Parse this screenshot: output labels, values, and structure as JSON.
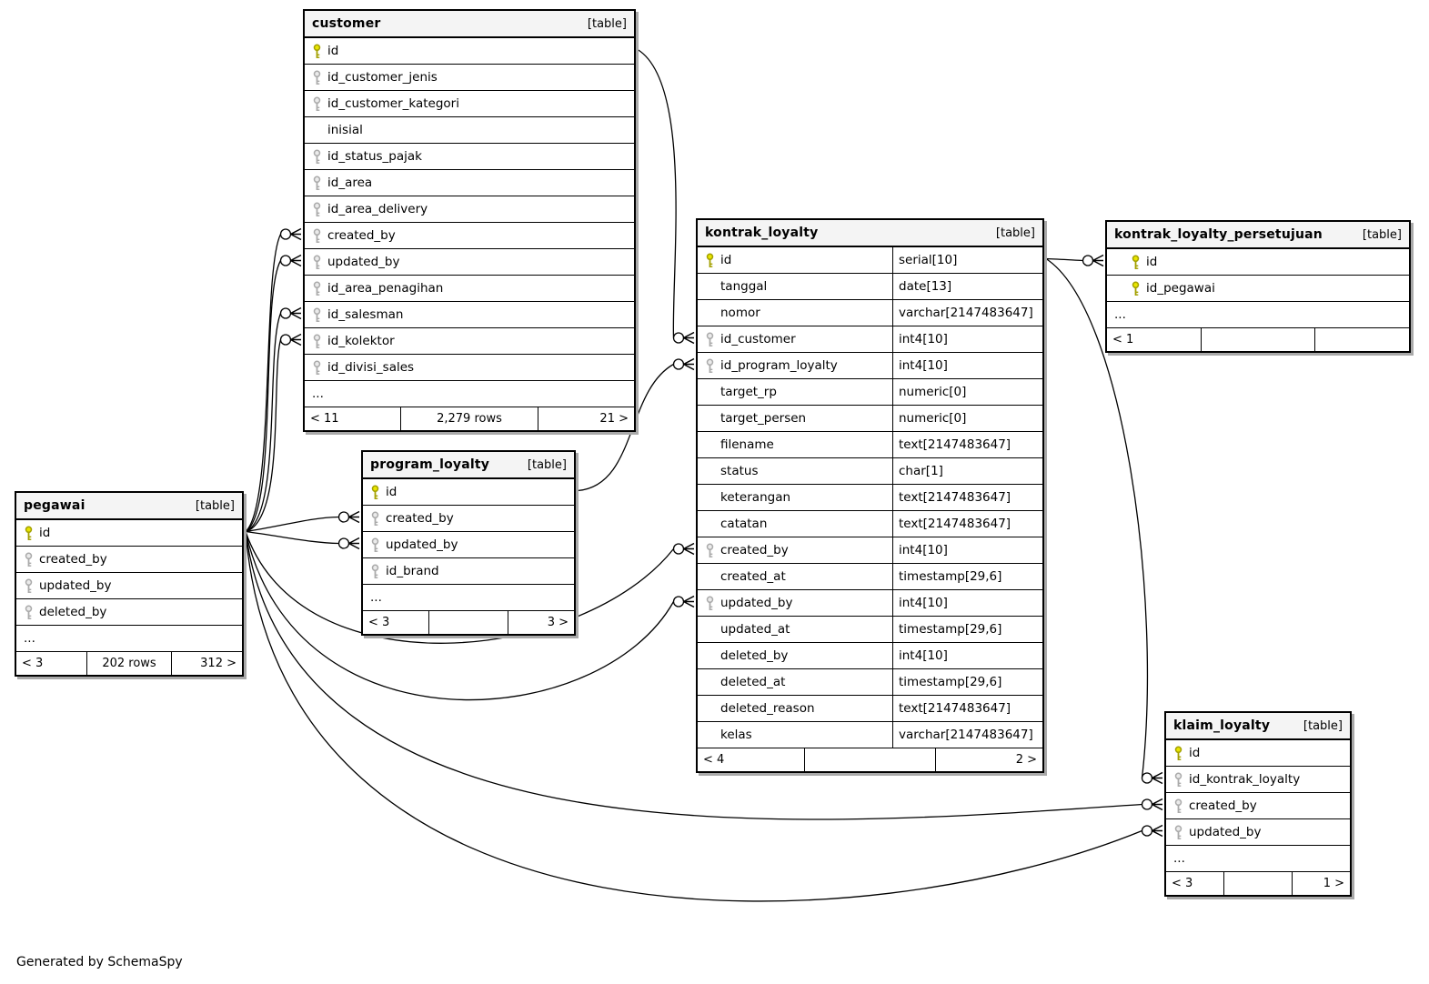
{
  "diagram": {
    "generator_note": "Generated by SchemaSpy",
    "ellipsis_label": "...",
    "colors": {
      "pk_key_fill": "#e8e500",
      "pk_key_stroke": "#a3a000",
      "fk_key_fill": "#ebebeb",
      "fk_key_stroke": "#aaaaaa",
      "header_bg": "#f4f4f4",
      "border": "#000000"
    },
    "tables": [
      {
        "name": "customer",
        "badge": "[table]",
        "columns": [
          {
            "name": "id",
            "key": "pk"
          },
          {
            "name": "id_customer_jenis",
            "key": "fk"
          },
          {
            "name": "id_customer_kategori",
            "key": "fk"
          },
          {
            "name": "inisial",
            "key": ""
          },
          {
            "name": "id_status_pajak",
            "key": "fk"
          },
          {
            "name": "id_area",
            "key": "fk"
          },
          {
            "name": "id_area_delivery",
            "key": "fk"
          },
          {
            "name": "created_by",
            "key": "fk"
          },
          {
            "name": "updated_by",
            "key": "fk"
          },
          {
            "name": "id_area_penagihan",
            "key": "fk"
          },
          {
            "name": "id_salesman",
            "key": "fk"
          },
          {
            "name": "id_kolektor",
            "key": "fk"
          },
          {
            "name": "id_divisi_sales",
            "key": "fk"
          }
        ],
        "ellipsis": true,
        "footer": {
          "left": "< 11",
          "center": "2,279 rows",
          "right": "21 >"
        }
      },
      {
        "name": "pegawai",
        "badge": "[table]",
        "columns": [
          {
            "name": "id",
            "key": "pk"
          },
          {
            "name": "created_by",
            "key": "fk"
          },
          {
            "name": "updated_by",
            "key": "fk"
          },
          {
            "name": "deleted_by",
            "key": "fk"
          }
        ],
        "ellipsis": true,
        "footer": {
          "left": "< 3",
          "center": "202 rows",
          "right": "312 >"
        }
      },
      {
        "name": "program_loyalty",
        "badge": "[table]",
        "columns": [
          {
            "name": "id",
            "key": "pk"
          },
          {
            "name": "created_by",
            "key": "fk"
          },
          {
            "name": "updated_by",
            "key": "fk"
          },
          {
            "name": "id_brand",
            "key": "fk"
          }
        ],
        "ellipsis": true,
        "footer": {
          "left": "< 3",
          "center": "",
          "right": "3 >"
        }
      },
      {
        "name": "kontrak_loyalty",
        "badge": "[table]",
        "columns": [
          {
            "name": "id",
            "type": "serial[10]",
            "key": "pk"
          },
          {
            "name": "tanggal",
            "type": "date[13]",
            "key": ""
          },
          {
            "name": "nomor",
            "type": "varchar[2147483647]",
            "key": ""
          },
          {
            "name": "id_customer",
            "type": "int4[10]",
            "key": "fk"
          },
          {
            "name": "id_program_loyalty",
            "type": "int4[10]",
            "key": "fk"
          },
          {
            "name": "target_rp",
            "type": "numeric[0]",
            "key": ""
          },
          {
            "name": "target_persen",
            "type": "numeric[0]",
            "key": ""
          },
          {
            "name": "filename",
            "type": "text[2147483647]",
            "key": ""
          },
          {
            "name": "status",
            "type": "char[1]",
            "key": ""
          },
          {
            "name": "keterangan",
            "type": "text[2147483647]",
            "key": ""
          },
          {
            "name": "catatan",
            "type": "text[2147483647]",
            "key": ""
          },
          {
            "name": "created_by",
            "type": "int4[10]",
            "key": "fk"
          },
          {
            "name": "created_at",
            "type": "timestamp[29,6]",
            "key": ""
          },
          {
            "name": "updated_by",
            "type": "int4[10]",
            "key": "fk"
          },
          {
            "name": "updated_at",
            "type": "timestamp[29,6]",
            "key": ""
          },
          {
            "name": "deleted_by",
            "type": "int4[10]",
            "key": ""
          },
          {
            "name": "deleted_at",
            "type": "timestamp[29,6]",
            "key": ""
          },
          {
            "name": "deleted_reason",
            "type": "text[2147483647]",
            "key": ""
          },
          {
            "name": "kelas",
            "type": "varchar[2147483647]",
            "key": ""
          }
        ],
        "ellipsis": false,
        "footer": {
          "left": "< 4",
          "center": "",
          "right": "2 >"
        }
      },
      {
        "name": "kontrak_loyalty_persetujuan",
        "badge": "[table]",
        "columns": [
          {
            "name": "id",
            "key": "pk"
          },
          {
            "name": "id_pegawai",
            "key": "pk"
          }
        ],
        "ellipsis": true,
        "footer": {
          "left": "< 1",
          "center": "",
          "right": ""
        }
      },
      {
        "name": "klaim_loyalty",
        "badge": "[table]",
        "columns": [
          {
            "name": "id",
            "key": "pk"
          },
          {
            "name": "id_kontrak_loyalty",
            "key": "fk"
          },
          {
            "name": "created_by",
            "key": "fk"
          },
          {
            "name": "updated_by",
            "key": "fk"
          }
        ],
        "ellipsis": true,
        "footer": {
          "left": "< 3",
          "center": "",
          "right": "1 >"
        }
      }
    ],
    "relationships": [
      {
        "from": "pegawai.id",
        "to": "customer.created_by"
      },
      {
        "from": "pegawai.id",
        "to": "customer.updated_by"
      },
      {
        "from": "pegawai.id",
        "to": "customer.id_salesman"
      },
      {
        "from": "pegawai.id",
        "to": "customer.id_kolektor"
      },
      {
        "from": "pegawai.id",
        "to": "program_loyalty.created_by"
      },
      {
        "from": "pegawai.id",
        "to": "program_loyalty.updated_by"
      },
      {
        "from": "pegawai.id",
        "to": "kontrak_loyalty.created_by"
      },
      {
        "from": "pegawai.id",
        "to": "kontrak_loyalty.updated_by"
      },
      {
        "from": "pegawai.id",
        "to": "klaim_loyalty.created_by"
      },
      {
        "from": "pegawai.id",
        "to": "klaim_loyalty.updated_by"
      },
      {
        "from": "customer.id",
        "to": "kontrak_loyalty.id_customer"
      },
      {
        "from": "program_loyalty.id",
        "to": "kontrak_loyalty.id_program_loyalty"
      },
      {
        "from": "kontrak_loyalty.id",
        "to": "kontrak_loyalty_persetujuan.id"
      },
      {
        "from": "kontrak_loyalty.id",
        "to": "klaim_loyalty.id_kontrak_loyalty"
      }
    ]
  }
}
